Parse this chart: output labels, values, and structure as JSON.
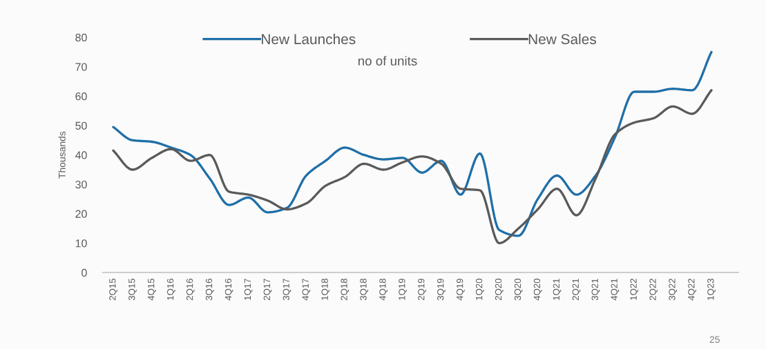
{
  "chart_data": {
    "type": "line",
    "ylabel": "Thousands",
    "annotations": [
      "no of units",
      "25"
    ],
    "categories": [
      "2Q15",
      "3Q15",
      "4Q15",
      "1Q16",
      "2Q16",
      "3Q16",
      "4Q16",
      "1Q17",
      "2Q17",
      "3Q17",
      "4Q17",
      "1Q18",
      "2Q18",
      "3Q18",
      "4Q18",
      "1Q19",
      "2Q19",
      "3Q19",
      "4Q19",
      "1Q20",
      "2Q20",
      "3Q20",
      "4Q20",
      "1Q21",
      "2Q21",
      "3Q21",
      "4Q21",
      "1Q22",
      "2Q22",
      "3Q22",
      "4Q22",
      "1Q23"
    ],
    "series": [
      {
        "name": "New Launches",
        "color": "#1f6fa8",
        "values": [
          49.5,
          45,
          44.5,
          42.5,
          40,
          32,
          23,
          25.5,
          20.5,
          22,
          33,
          38,
          42.5,
          40,
          38.5,
          39,
          34,
          38,
          26.5,
          40.5,
          14.5,
          12.5,
          25,
          33,
          26.5,
          33,
          46,
          61.5,
          61.5,
          62.5,
          62,
          75
        ]
      },
      {
        "name": "New Sales",
        "color": "#5a5a5a",
        "values": [
          41.5,
          35,
          39,
          42,
          38,
          40,
          27.5,
          26.5,
          24.5,
          21.5,
          23.5,
          29.5,
          32.5,
          37,
          35,
          37.5,
          39.5,
          37,
          28.5,
          28,
          10,
          15,
          21.5,
          28.5,
          19.5,
          32,
          47,
          51,
          52.5,
          56.5,
          54,
          62
        ]
      }
    ],
    "ylim": [
      0,
      80
    ],
    "yticks": [
      0,
      10,
      20,
      30,
      40,
      50,
      60,
      70,
      80
    ],
    "legend": "top",
    "line_style": "solid"
  }
}
